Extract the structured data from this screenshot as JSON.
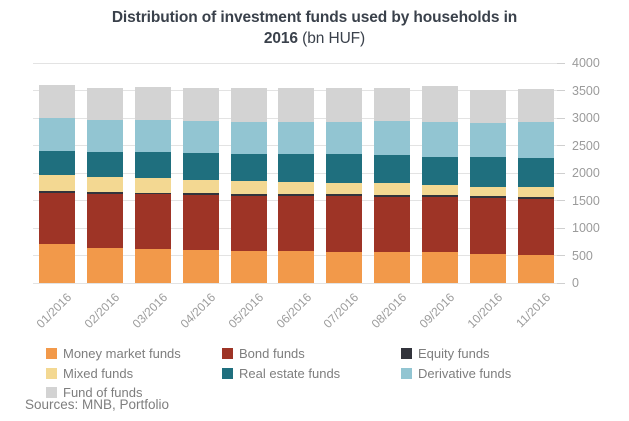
{
  "title": {
    "line1": "Distribution of investment funds used by households in",
    "line2_bold": "2016",
    "line2_unit": " (bn HUF)"
  },
  "sources": "Sources: MNB, Portfolio",
  "colors": {
    "title_text": "#3a414b",
    "axis_text": "#9b9b9b",
    "legend_text": "#7e7e7e",
    "gridline": "#e3e3e3",
    "money_market": "#F2994A",
    "bond": "#9E3426",
    "equity": "#32343C",
    "mixed": "#F3D892",
    "real_estate": "#1F6F7E",
    "derivative": "#92C5D2",
    "fund_of_funds": "#D3D3D3"
  },
  "chart_data": {
    "type": "bar",
    "stacked": true,
    "title": "Distribution of investment funds used by households in 2016 (bn HUF)",
    "categories": [
      "01/2016",
      "02/2016",
      "03/2016",
      "04/2016",
      "05/2016",
      "06/2016",
      "07/2016",
      "08/2016",
      "09/2016",
      "10/2016",
      "11/2016"
    ],
    "series": [
      {
        "name": "Money market funds",
        "color": "#F2994A",
        "values": [
          710,
          630,
          615,
          600,
          590,
          585,
          570,
          555,
          565,
          530,
          510
        ]
      },
      {
        "name": "Bond funds",
        "color": "#9E3426",
        "values": [
          930,
          995,
          1000,
          1000,
          1000,
          1000,
          1010,
          1015,
          1000,
          1015,
          1020
        ]
      },
      {
        "name": "Equity funds",
        "color": "#32343C",
        "values": [
          30,
          30,
          30,
          30,
          30,
          30,
          30,
          30,
          30,
          30,
          30
        ]
      },
      {
        "name": "Mixed funds",
        "color": "#F3D892",
        "values": [
          290,
          275,
          265,
          250,
          235,
          225,
          215,
          210,
          195,
          180,
          180
        ]
      },
      {
        "name": "Real estate funds",
        "color": "#1F6F7E",
        "values": [
          440,
          450,
          465,
          480,
          495,
          505,
          515,
          525,
          510,
          540,
          540
        ]
      },
      {
        "name": "Derivative funds",
        "color": "#92C5D2",
        "values": [
          595,
          585,
          585,
          590,
          585,
          590,
          590,
          610,
          635,
          620,
          640
        ]
      },
      {
        "name": "Fund of funds",
        "color": "#D3D3D3",
        "values": [
          605,
          585,
          610,
          600,
          615,
          615,
          625,
          610,
          645,
          595,
          610
        ]
      }
    ],
    "ylim": [
      0,
      4000
    ],
    "yticks": [
      0,
      500,
      1000,
      1500,
      2000,
      2500,
      3000,
      3500,
      4000
    ],
    "grid": true,
    "legend_position": "bottom-left",
    "legend_columns": 3,
    "legend_order": [
      "Money market funds",
      "Bond funds",
      "Equity funds",
      "Mixed funds",
      "Real estate funds",
      "Derivative funds",
      "Fund of funds"
    ],
    "xlabel_rotation_deg": -45,
    "yaxis_side": "right"
  }
}
